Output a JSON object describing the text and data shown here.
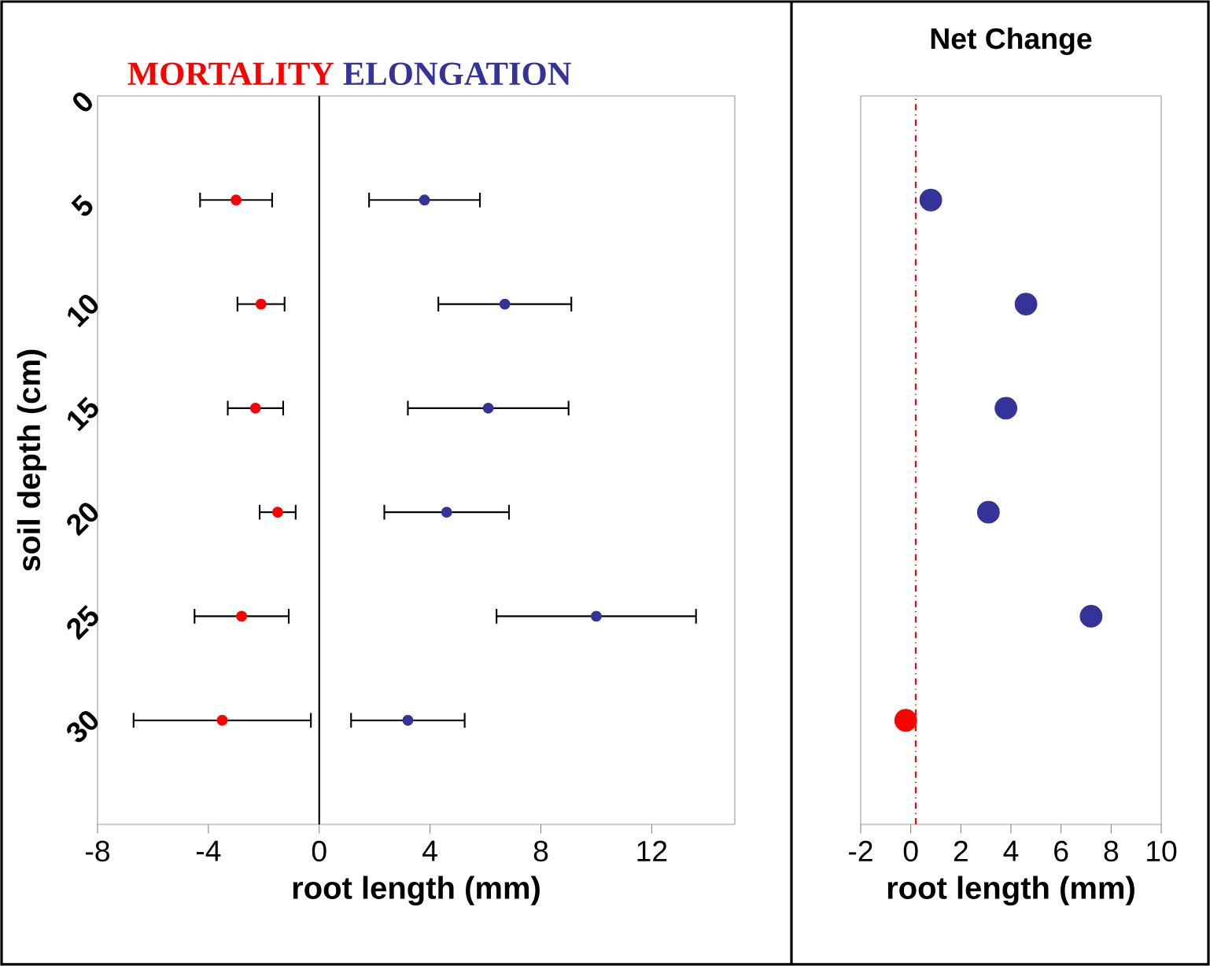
{
  "chart_data": [
    {
      "type": "scatter",
      "xlabel": "root length (mm)",
      "ylabel": "soil depth (cm)",
      "xlim": [
        -8,
        15
      ],
      "xticks": [
        -8,
        -4,
        0,
        4,
        8,
        12
      ],
      "ylim": [
        35,
        0
      ],
      "yticks": [
        0,
        5,
        10,
        15,
        20,
        25,
        30
      ],
      "marker": "circle",
      "ref_lines": [
        {
          "axis": "x",
          "value": 0,
          "color": "#000000",
          "line_style": "solid"
        }
      ],
      "series": [
        {
          "name": "MORTALITY",
          "color": "#ff0000",
          "x": [
            -3.0,
            -2.1,
            -2.3,
            -1.5,
            -2.8,
            -3.5
          ],
          "values": [
            5,
            10,
            15,
            20,
            25,
            30
          ],
          "xerrors": [
            1.3,
            0.85,
            1.0,
            0.65,
            1.7,
            3.2
          ]
        },
        {
          "name": "ELONGATION",
          "color": "#333399",
          "x": [
            3.8,
            6.7,
            6.1,
            4.6,
            10.0,
            3.2
          ],
          "values": [
            5,
            10,
            15,
            20,
            25,
            30
          ],
          "xerrors": [
            2.0,
            2.4,
            2.9,
            2.25,
            3.6,
            2.05
          ]
        }
      ]
    },
    {
      "type": "scatter",
      "title": "Net Change",
      "xlabel": "root length (mm)",
      "xlim": [
        -2,
        10
      ],
      "xticks": [
        -2,
        0,
        2,
        4,
        6,
        8,
        10
      ],
      "ylim": [
        35,
        0
      ],
      "tick_labels": "x",
      "marker": "circle",
      "ref_lines": [
        {
          "axis": "x",
          "value": 0.2,
          "color": "#ff0000",
          "line_style": "dashdot"
        }
      ],
      "x": [
        0.8,
        4.6,
        3.8,
        3.1,
        7.2,
        -0.2
      ],
      "values": [
        5,
        10,
        15,
        20,
        25,
        30
      ],
      "colors": [
        "#333399",
        "#333399",
        "#333399",
        "#333399",
        "#333399",
        "#ff0000"
      ]
    }
  ]
}
